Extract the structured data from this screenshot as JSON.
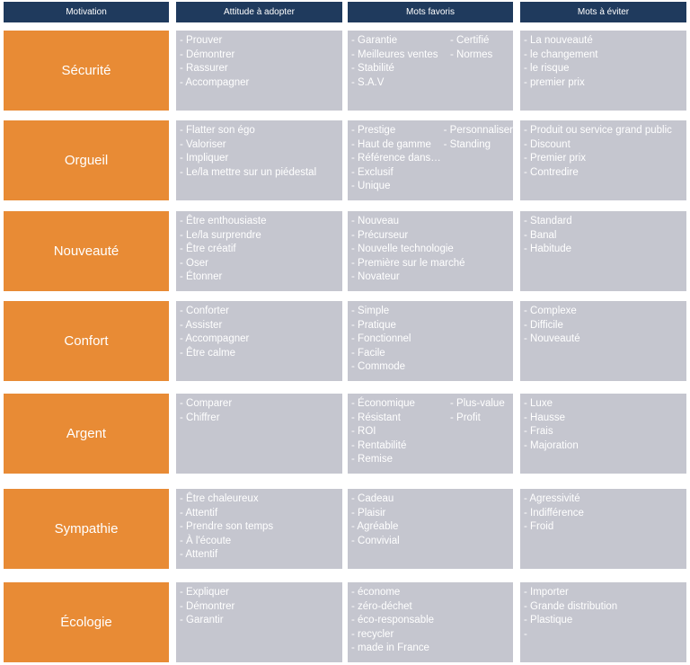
{
  "headers": [
    "Motivation",
    "Attitude à adopter",
    "Mots favoris",
    "Mots à éviter"
  ],
  "rows": [
    {
      "motivation": "Sécurité",
      "attitude": [
        "- Prouver",
        "- Démontrer",
        "- Rassurer",
        "- Accompagner"
      ],
      "favoris_a": [
        "- Garantie",
        "- Meilleures ventes",
        "- Stabilité",
        "- S.A.V"
      ],
      "favoris_b": [
        "- Certifié",
        "- Normes"
      ],
      "eviter": [
        "- La nouveauté",
        "-  le changement",
        "- le risque",
        "- premier prix"
      ]
    },
    {
      "motivation": "Orgueil",
      "attitude": [
        "- Flatter son égo",
        "- Valoriser",
        "- Impliquer",
        "- Le/la mettre sur un piédestal"
      ],
      "favoris_a": [
        "- Prestige",
        "- Haut de gamme",
        "- Référence dans…",
        "- Exclusif",
        "- Unique"
      ],
      "favoris_b": [
        "- Personnaliser",
        "- Standing"
      ],
      "eviter": [
        "- Produit ou service grand public",
        "- Discount",
        "- Premier prix",
        "- Contredire"
      ]
    },
    {
      "motivation": "Nouveauté",
      "attitude": [
        "- Être enthousiaste",
        "- Le/la surprendre",
        "- Être créatif",
        "- Oser",
        "- Étonner"
      ],
      "favoris_a": [
        "- Nouveau",
        "- Précurseur",
        "- Nouvelle technologie",
        "- Première sur le marché",
        "- Novateur"
      ],
      "favoris_b": [],
      "eviter": [
        "- Standard",
        "- Banal",
        "- Habitude"
      ]
    },
    {
      "motivation": "Confort",
      "attitude": [
        "- Conforter",
        "- Assister",
        "- Accompagner",
        "- Être calme"
      ],
      "favoris_a": [
        "- Simple",
        "- Pratique",
        "- Fonctionnel",
        "- Facile",
        "- Commode"
      ],
      "favoris_b": [],
      "eviter": [
        "- Complexe",
        "- Difficile",
        "- Nouveauté"
      ]
    },
    {
      "motivation": "Argent",
      "attitude": [
        "- Comparer",
        "- Chiffrer"
      ],
      "favoris_a": [
        "- Économique",
        "- Résistant",
        "- ROI",
        "- Rentabilité",
        "- Remise"
      ],
      "favoris_b": [
        "- Plus-value",
        "- Profit"
      ],
      "eviter": [
        "- Luxe",
        "- Hausse",
        "- Frais",
        "- Majoration"
      ]
    },
    {
      "motivation": "Sympathie",
      "attitude": [
        "- Être chaleureux",
        "- Attentif",
        "- Prendre son temps",
        "- À l'écoute",
        "- Attentif"
      ],
      "favoris_a": [
        "- Cadeau",
        "- Plaisir",
        "- Agréable",
        "- Convivial"
      ],
      "favoris_b": [],
      "eviter": [
        "- Agressivité",
        "- Indifférence",
        "- Froid"
      ]
    },
    {
      "motivation": "Écologie",
      "attitude": [
        "- Expliquer",
        "- Démontrer",
        "- Garantir"
      ],
      "favoris_a": [
        "- économe",
        "- zéro-déchet",
        "- éco-responsable",
        "- recycler",
        "- made in France"
      ],
      "favoris_b": [],
      "eviter": [
        "- Importer",
        "- Grande distribution",
        "- Plastique",
        "-"
      ]
    }
  ],
  "colors": {
    "header": "#1f3a5d",
    "motivation": "#e88b35",
    "box": "#c5c6cf",
    "text": "#ffffff"
  }
}
